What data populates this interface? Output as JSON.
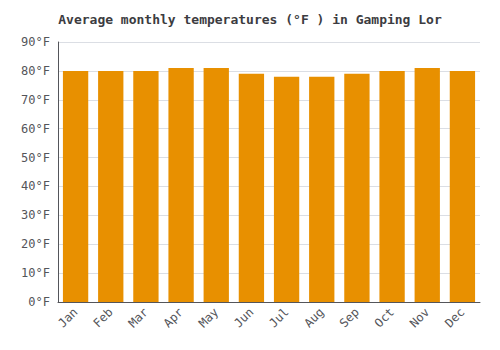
{
  "chart_data": {
    "type": "bar",
    "title": "Average monthly temperatures (°F ) in Gamping Lor",
    "categories": [
      "Jan",
      "Feb",
      "Mar",
      "Apr",
      "May",
      "Jun",
      "Jul",
      "Aug",
      "Sep",
      "Oct",
      "Nov",
      "Dec"
    ],
    "values": [
      80,
      80,
      80,
      81,
      81,
      79,
      78,
      78,
      79,
      80,
      81,
      80
    ],
    "color": "#E89000",
    "ylim": [
      0,
      90
    ],
    "yticks": [
      {
        "value": 0,
        "label": "0°F"
      },
      {
        "value": 10,
        "label": "10°F"
      },
      {
        "value": 20,
        "label": "20°F"
      },
      {
        "value": 30,
        "label": "30°F"
      },
      {
        "value": 40,
        "label": "40°F"
      },
      {
        "value": 50,
        "label": "50°F"
      },
      {
        "value": 60,
        "label": "60°F"
      },
      {
        "value": 70,
        "label": "70°F"
      },
      {
        "value": 80,
        "label": "80°F"
      },
      {
        "value": 90,
        "label": "90°F"
      }
    ],
    "grid": true
  }
}
